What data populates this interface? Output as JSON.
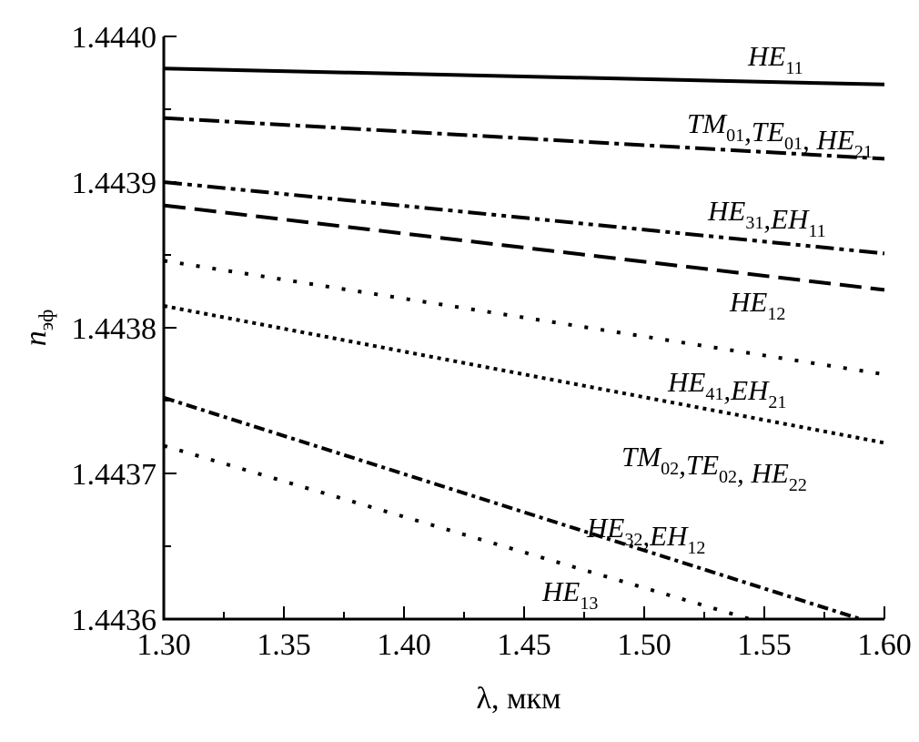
{
  "chart_data": {
    "type": "line",
    "title": "",
    "xlabel": "λ, мкм",
    "ylabel_main": "n",
    "ylabel_sub": "эф",
    "xlim": [
      1.3,
      1.6
    ],
    "ylim": [
      1.4436,
      1.444
    ],
    "xticks": [
      "1.30",
      "1.35",
      "1.40",
      "1.45",
      "1.50",
      "1.55",
      "1.60"
    ],
    "yticks": [
      "1.4436",
      "1.4437",
      "1.4438",
      "1.4439",
      "1.4440"
    ],
    "grid": false,
    "color": "#000000",
    "series": [
      {
        "name": "HE11",
        "style": "solid",
        "x": [
          1.3,
          1.6
        ],
        "y": [
          1.443978,
          1.443967
        ],
        "label": [
          [
            "HE",
            "11"
          ]
        ]
      },
      {
        "name": "TM01,TE01, HE21",
        "style": "dash-dot",
        "x": [
          1.3,
          1.6
        ],
        "y": [
          1.443944,
          1.443916
        ],
        "label": [
          [
            "TM",
            "01"
          ],
          [
            ",TE",
            "01"
          ],
          [
            ", HE",
            "21"
          ]
        ]
      },
      {
        "name": "HE31,EH11",
        "style": "dash-dot-dot",
        "x": [
          1.3,
          1.6
        ],
        "y": [
          1.4439,
          1.443851
        ],
        "label": [
          [
            "HE",
            "31"
          ],
          [
            ",EH",
            "11"
          ]
        ]
      },
      {
        "name": "HE12",
        "style": "dashed",
        "x": [
          1.3,
          1.6
        ],
        "y": [
          1.443884,
          1.443826
        ],
        "label": [
          [
            "HE",
            "12"
          ]
        ]
      },
      {
        "name": "HE41,EH21",
        "style": "sparse-dotted",
        "x": [
          1.3,
          1.6
        ],
        "y": [
          1.443846,
          1.443768
        ],
        "label": [
          [
            "HE",
            "41"
          ],
          [
            ",EH",
            "21"
          ]
        ]
      },
      {
        "name": "TM02,TE02, HE22",
        "style": "dotted",
        "x": [
          1.3,
          1.6
        ],
        "y": [
          1.443815,
          1.443721
        ],
        "label": [
          [
            "TM",
            "02"
          ],
          [
            ",TE",
            "02"
          ],
          [
            ", HE",
            "22"
          ]
        ]
      },
      {
        "name": "HE32,EH12",
        "style": "short-dash-dot",
        "x": [
          1.3,
          1.59
        ],
        "y": [
          1.443752,
          1.4436
        ],
        "label": [
          [
            "HE",
            "32"
          ],
          [
            ",EH",
            "12"
          ]
        ]
      },
      {
        "name": "HE13",
        "style": "sparse-dotted",
        "x": [
          1.3,
          1.544
        ],
        "y": [
          1.443719,
          1.4436
        ],
        "label": [
          [
            "HE",
            "13"
          ]
        ]
      }
    ]
  }
}
